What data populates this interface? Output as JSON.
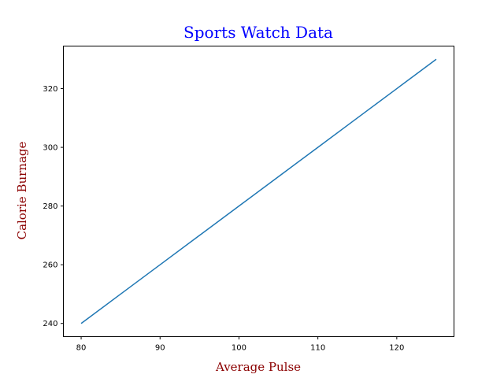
{
  "chart_data": {
    "type": "line",
    "title": "Sports Watch Data",
    "xlabel": "Average Pulse",
    "ylabel": "Calorie Burnage",
    "x": [
      80,
      85,
      90,
      95,
      100,
      105,
      110,
      115,
      120,
      125
    ],
    "series": [
      {
        "values": [
          240,
          250,
          260,
          270,
          280,
          290,
          300,
          310,
          320,
          330
        ],
        "color": "#1f77b4"
      }
    ],
    "xlim": [
      77.75,
      127.25
    ],
    "ylim": [
      235.5,
      334.5
    ],
    "xticks": [
      80,
      90,
      100,
      110,
      120
    ],
    "yticks": [
      240,
      260,
      280,
      300,
      320
    ],
    "grid": false,
    "title_color": "#0000ff",
    "label_color": "#8b0000"
  }
}
